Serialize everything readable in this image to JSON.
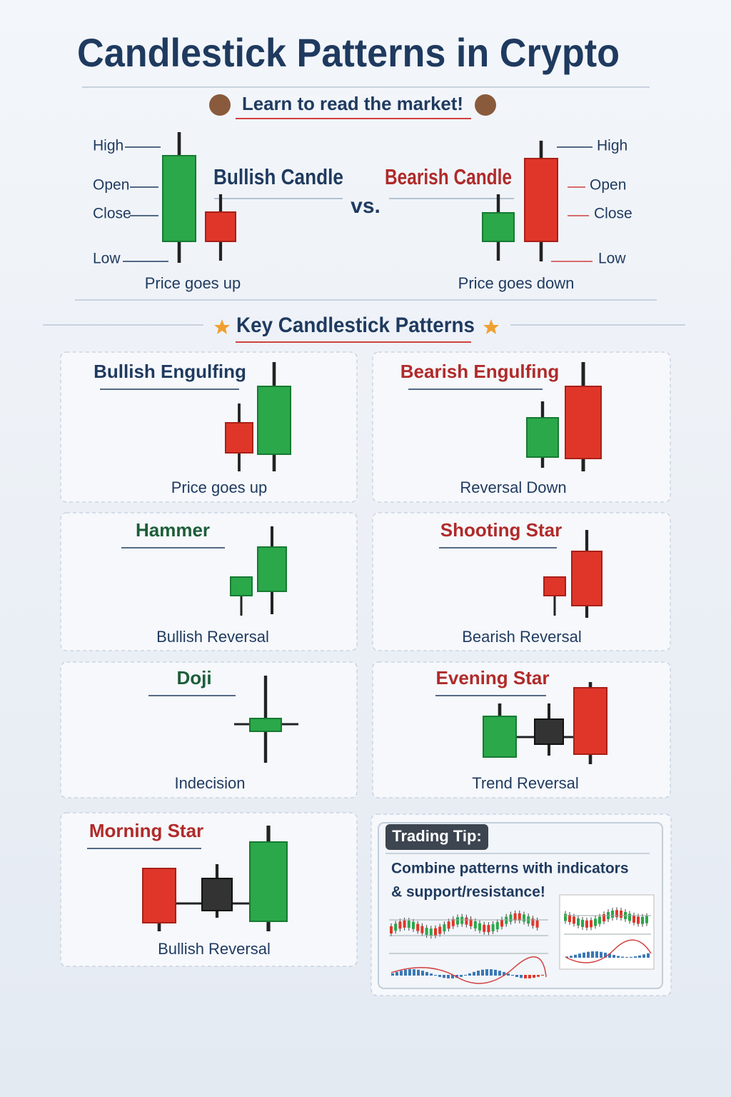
{
  "header": {
    "title": "Candlestick Patterns in Crypto",
    "subtitle": "Learn to read the market!"
  },
  "comparison": {
    "bullish": {
      "title": "Bullish Candle",
      "labels": [
        "High",
        "Open",
        "Close",
        "Low"
      ],
      "caption": "Price goes up"
    },
    "vs": "vs.",
    "bearish": {
      "title": "Bearish Candle",
      "labels": [
        "High",
        "Open",
        "Close",
        "Low"
      ],
      "caption": "Price goes down"
    }
  },
  "section_title": "Key Candlestick Patterns",
  "patterns": [
    {
      "name": "Bullish Engulfing",
      "caption": "Price goes up"
    },
    {
      "name": "Bearish Engulfing",
      "caption": "Reversal Down"
    },
    {
      "name": "Hammer",
      "caption": "Bullish Reversal"
    },
    {
      "name": "Shooting Star",
      "caption": "Bearish Reversal"
    },
    {
      "name": "Doji",
      "caption": "Indecision"
    },
    {
      "name": "Evening Star",
      "caption": "Trend Reversal"
    },
    {
      "name": "Morning Star",
      "caption": "Bullish Reversal"
    }
  ],
  "tip": {
    "title": "Trading Tip:",
    "lines": [
      "Combine patterns with indicators",
      "& support/resistance!"
    ]
  }
}
